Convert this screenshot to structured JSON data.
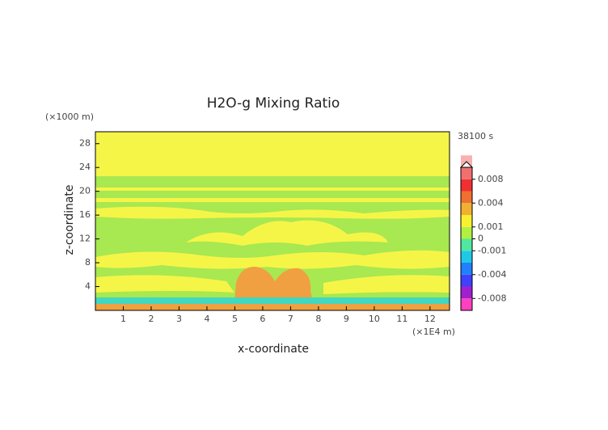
{
  "chart_data": {
    "type": "contour",
    "title": "H2O-g Mixing Ratio",
    "x_label": "x-coordinate",
    "y_label": "z-coordinate",
    "x_unit": "(×1E4 m)",
    "y_unit": "(×1000 m)",
    "time_label": "38100 s",
    "xlim": [
      0,
      12.7
    ],
    "ylim": [
      0,
      30
    ],
    "xticks": [
      1,
      2,
      3,
      4,
      5,
      6,
      7,
      8,
      9,
      10,
      11,
      12
    ],
    "yticks": [
      4,
      8,
      12,
      16,
      20,
      24,
      28
    ],
    "colorbar": {
      "levels": [
        -0.01,
        -0.008,
        -0.006,
        -0.004,
        -0.002,
        -0.001,
        0,
        0.001,
        0.002,
        0.004,
        0.006,
        0.008,
        0.01
      ],
      "colors": [
        "#ff40c0",
        "#a020d0",
        "#4040ff",
        "#2080ff",
        "#20c8e8",
        "#50e8a0",
        "#b0f040",
        "#f8f030",
        "#f0b030",
        "#f07030",
        "#f03030",
        "#f07070",
        "#f8b0b0"
      ],
      "ticks": [
        0.008,
        0.004,
        0.001,
        0,
        -0.001,
        -0.004,
        -0.008
      ]
    }
  }
}
